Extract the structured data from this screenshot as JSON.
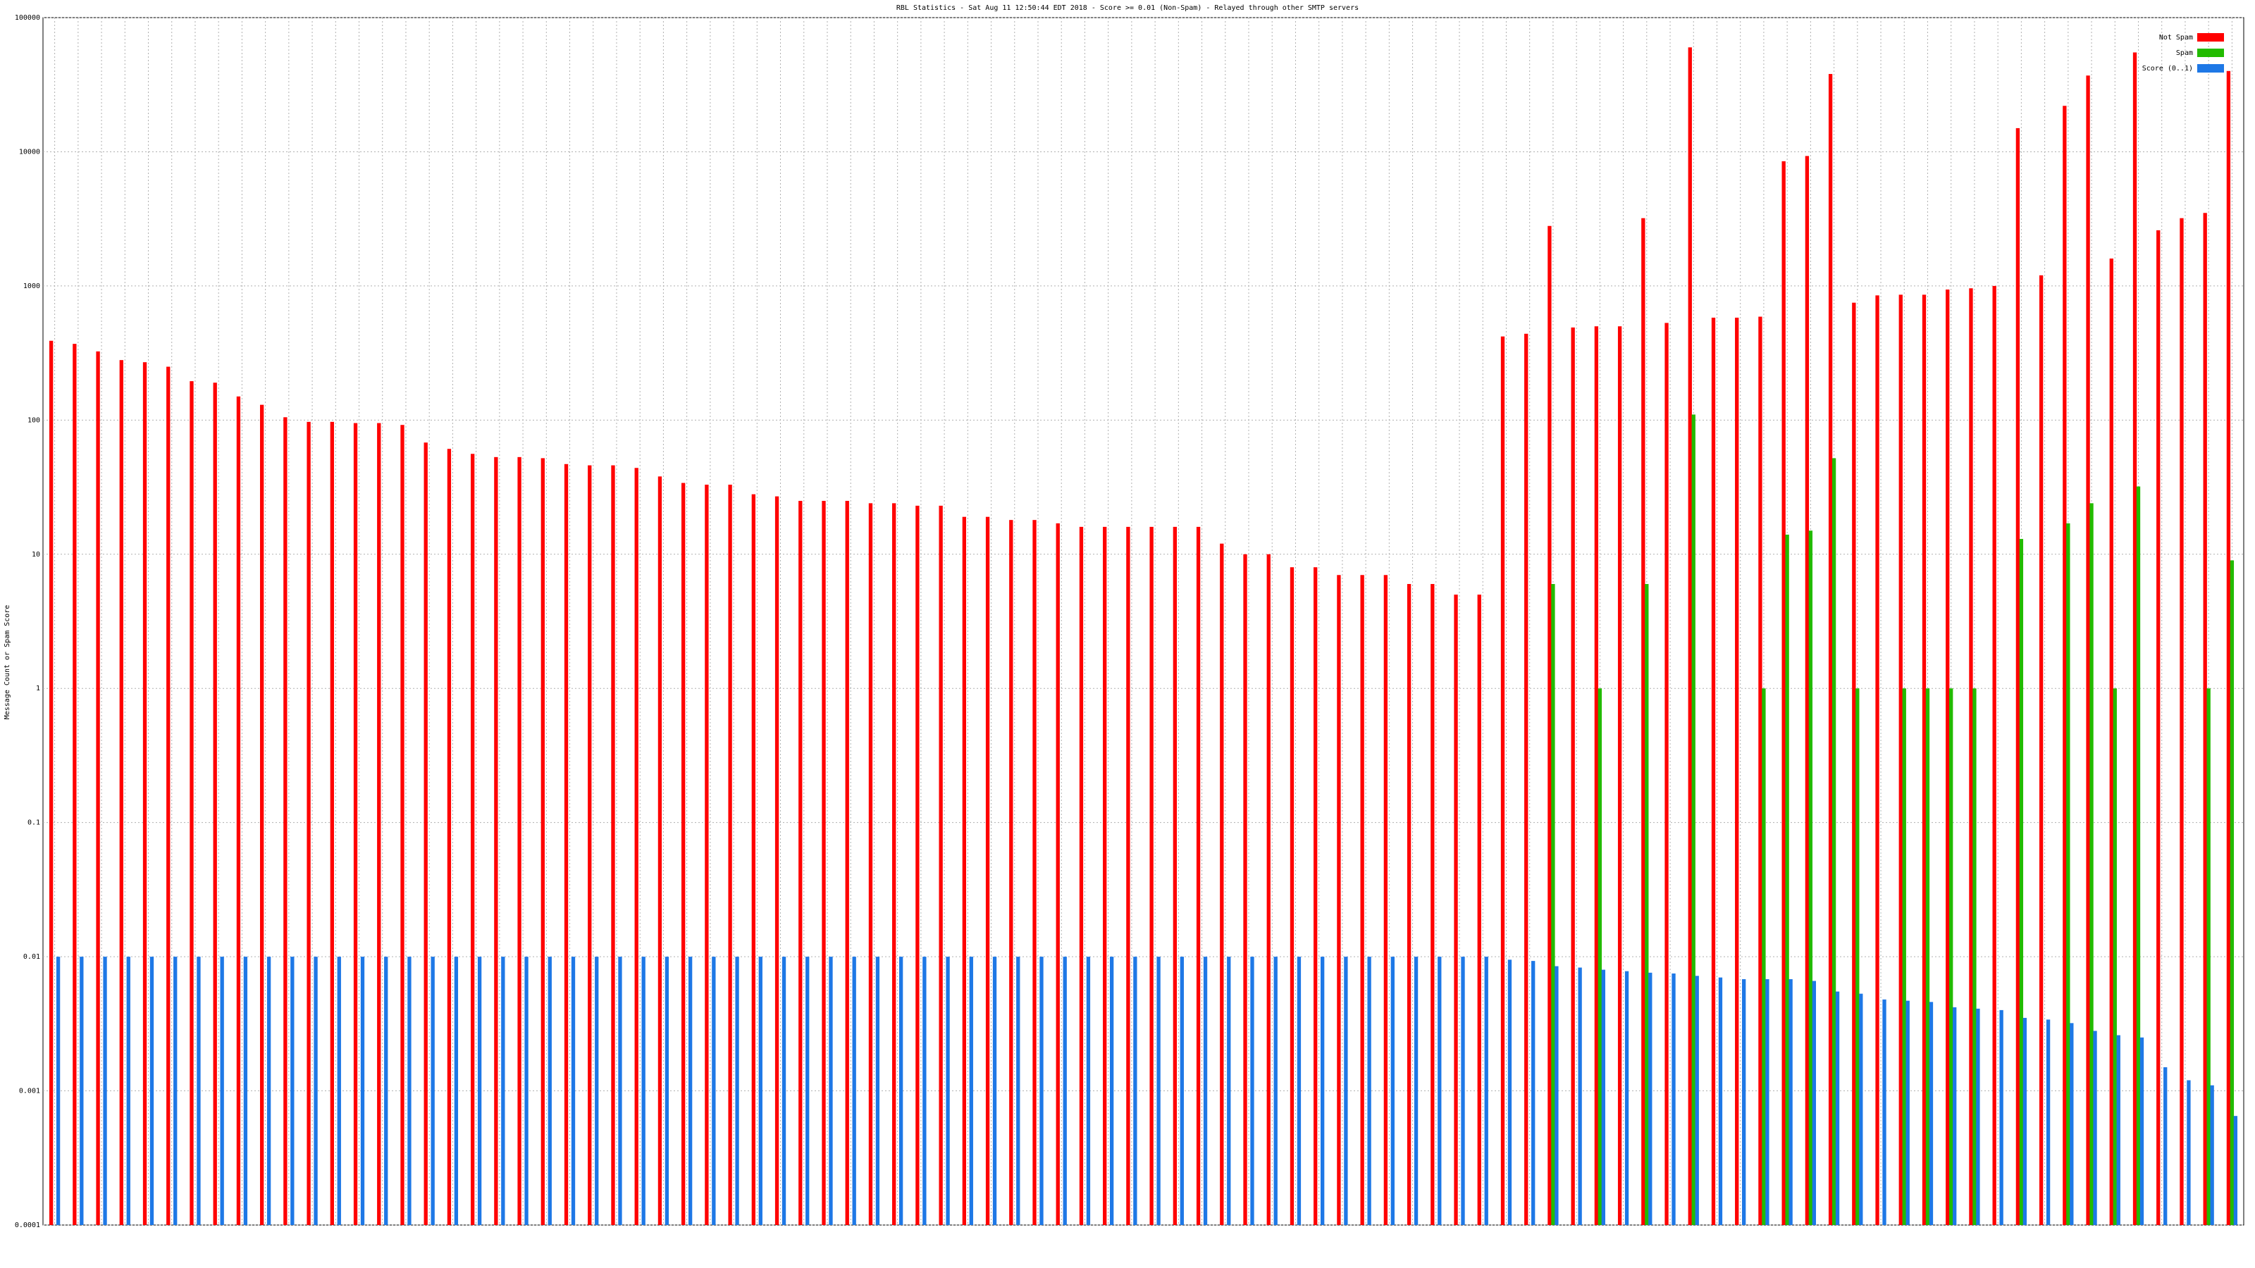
{
  "chart_data": {
    "type": "bar",
    "title": "RBL Statistics - Sat Aug 11 12:50:44 EDT 2018 - Score >= 0.01 (Non-Spam) - Relayed through other SMTP servers",
    "y_label": "Message Count or Spam Score",
    "log_scale": true,
    "grid": true,
    "legend": "upper right",
    "ylim": [
      0.0001,
      100000
    ],
    "yticks": [
      0.0001,
      0.001,
      0.01,
      0.1,
      1,
      10,
      100,
      1000,
      10000,
      100000
    ],
    "categories": [
      null,
      null,
      null,
      null,
      null,
      null,
      null,
      null,
      null,
      null,
      null,
      null,
      null,
      null,
      null,
      null,
      null,
      null,
      null,
      null,
      null,
      null,
      null,
      null,
      null,
      null,
      null,
      null,
      null,
      null,
      null,
      null,
      null,
      null,
      null,
      null,
      null,
      null,
      null,
      null,
      null,
      null,
      null,
      null,
      null,
      null,
      null,
      null,
      null,
      null,
      null,
      null,
      null,
      null,
      null,
      null,
      null,
      null,
      null,
      null,
      null,
      null,
      null,
      null,
      null,
      null,
      null,
      null,
      null,
      null,
      null,
      null,
      null,
      null,
      null,
      null,
      null,
      null,
      null,
      null,
      null,
      null,
      null,
      null,
      null,
      null,
      null,
      null,
      null,
      null,
      null,
      null,
      null,
      null
    ],
    "series": [
      {
        "name": "Not Spam",
        "color": "#ff0000",
        "values": [
          390,
          370,
          325,
          280,
          270,
          250,
          195,
          190,
          150,
          130,
          105,
          97,
          97,
          95,
          95,
          92,
          68,
          61,
          56,
          53,
          53,
          52,
          47,
          46,
          46,
          44,
          38,
          34,
          33,
          33,
          28,
          27,
          25,
          25,
          25,
          24,
          24,
          23,
          23,
          19,
          19,
          18,
          18,
          17,
          16,
          16,
          16,
          16,
          16,
          16,
          12,
          10,
          10,
          8,
          8,
          7,
          7,
          7,
          6,
          6,
          5,
          5,
          420,
          440,
          2800,
          490,
          500,
          500,
          3200,
          530,
          60000,
          580,
          580,
          590,
          8500,
          9300,
          38000,
          750,
          850,
          860,
          860,
          940,
          960,
          1000,
          15000,
          1200,
          22000,
          37000,
          1600,
          55000,
          2600,
          3200,
          3500,
          40000
        ]
      },
      {
        "name": "Spam",
        "color": "#22bb00",
        "values": [
          null,
          null,
          null,
          null,
          null,
          null,
          null,
          null,
          null,
          null,
          null,
          null,
          null,
          null,
          null,
          null,
          null,
          null,
          null,
          null,
          null,
          null,
          null,
          null,
          null,
          null,
          null,
          null,
          null,
          null,
          null,
          null,
          null,
          null,
          null,
          null,
          null,
          null,
          null,
          null,
          null,
          null,
          null,
          null,
          null,
          null,
          null,
          null,
          null,
          null,
          null,
          null,
          null,
          null,
          null,
          null,
          null,
          null,
          null,
          null,
          null,
          null,
          null,
          null,
          6,
          null,
          1,
          null,
          6,
          null,
          110,
          null,
          null,
          1,
          14,
          15,
          52,
          1,
          null,
          1,
          1,
          1,
          1,
          null,
          13,
          null,
          17,
          24,
          1,
          32,
          null,
          null,
          1,
          9
        ]
      },
      {
        "name": "Score (0..1)",
        "color": "#1e78e6",
        "values": [
          0.01,
          0.01,
          0.01,
          0.01,
          0.01,
          0.01,
          0.01,
          0.01,
          0.01,
          0.01,
          0.01,
          0.01,
          0.01,
          0.01,
          0.01,
          0.01,
          0.01,
          0.01,
          0.01,
          0.01,
          0.01,
          0.01,
          0.01,
          0.01,
          0.01,
          0.01,
          0.01,
          0.01,
          0.01,
          0.01,
          0.01,
          0.01,
          0.01,
          0.01,
          0.01,
          0.01,
          0.01,
          0.01,
          0.01,
          0.01,
          0.01,
          0.01,
          0.01,
          0.01,
          0.01,
          0.01,
          0.01,
          0.01,
          0.01,
          0.01,
          0.01,
          0.01,
          0.01,
          0.01,
          0.01,
          0.01,
          0.01,
          0.01,
          0.01,
          0.01,
          0.01,
          0.01,
          0.0095,
          0.0093,
          0.0085,
          0.0083,
          0.008,
          0.0078,
          0.0076,
          0.0075,
          0.0072,
          0.007,
          0.0068,
          0.0068,
          0.0068,
          0.0066,
          0.0055,
          0.0053,
          0.0048,
          0.0047,
          0.0046,
          0.0042,
          0.0041,
          0.004,
          0.0035,
          0.0034,
          0.0032,
          0.0028,
          0.0026,
          0.0025,
          0.0015,
          0.0012,
          0.0011,
          0.00065
        ]
      }
    ]
  }
}
